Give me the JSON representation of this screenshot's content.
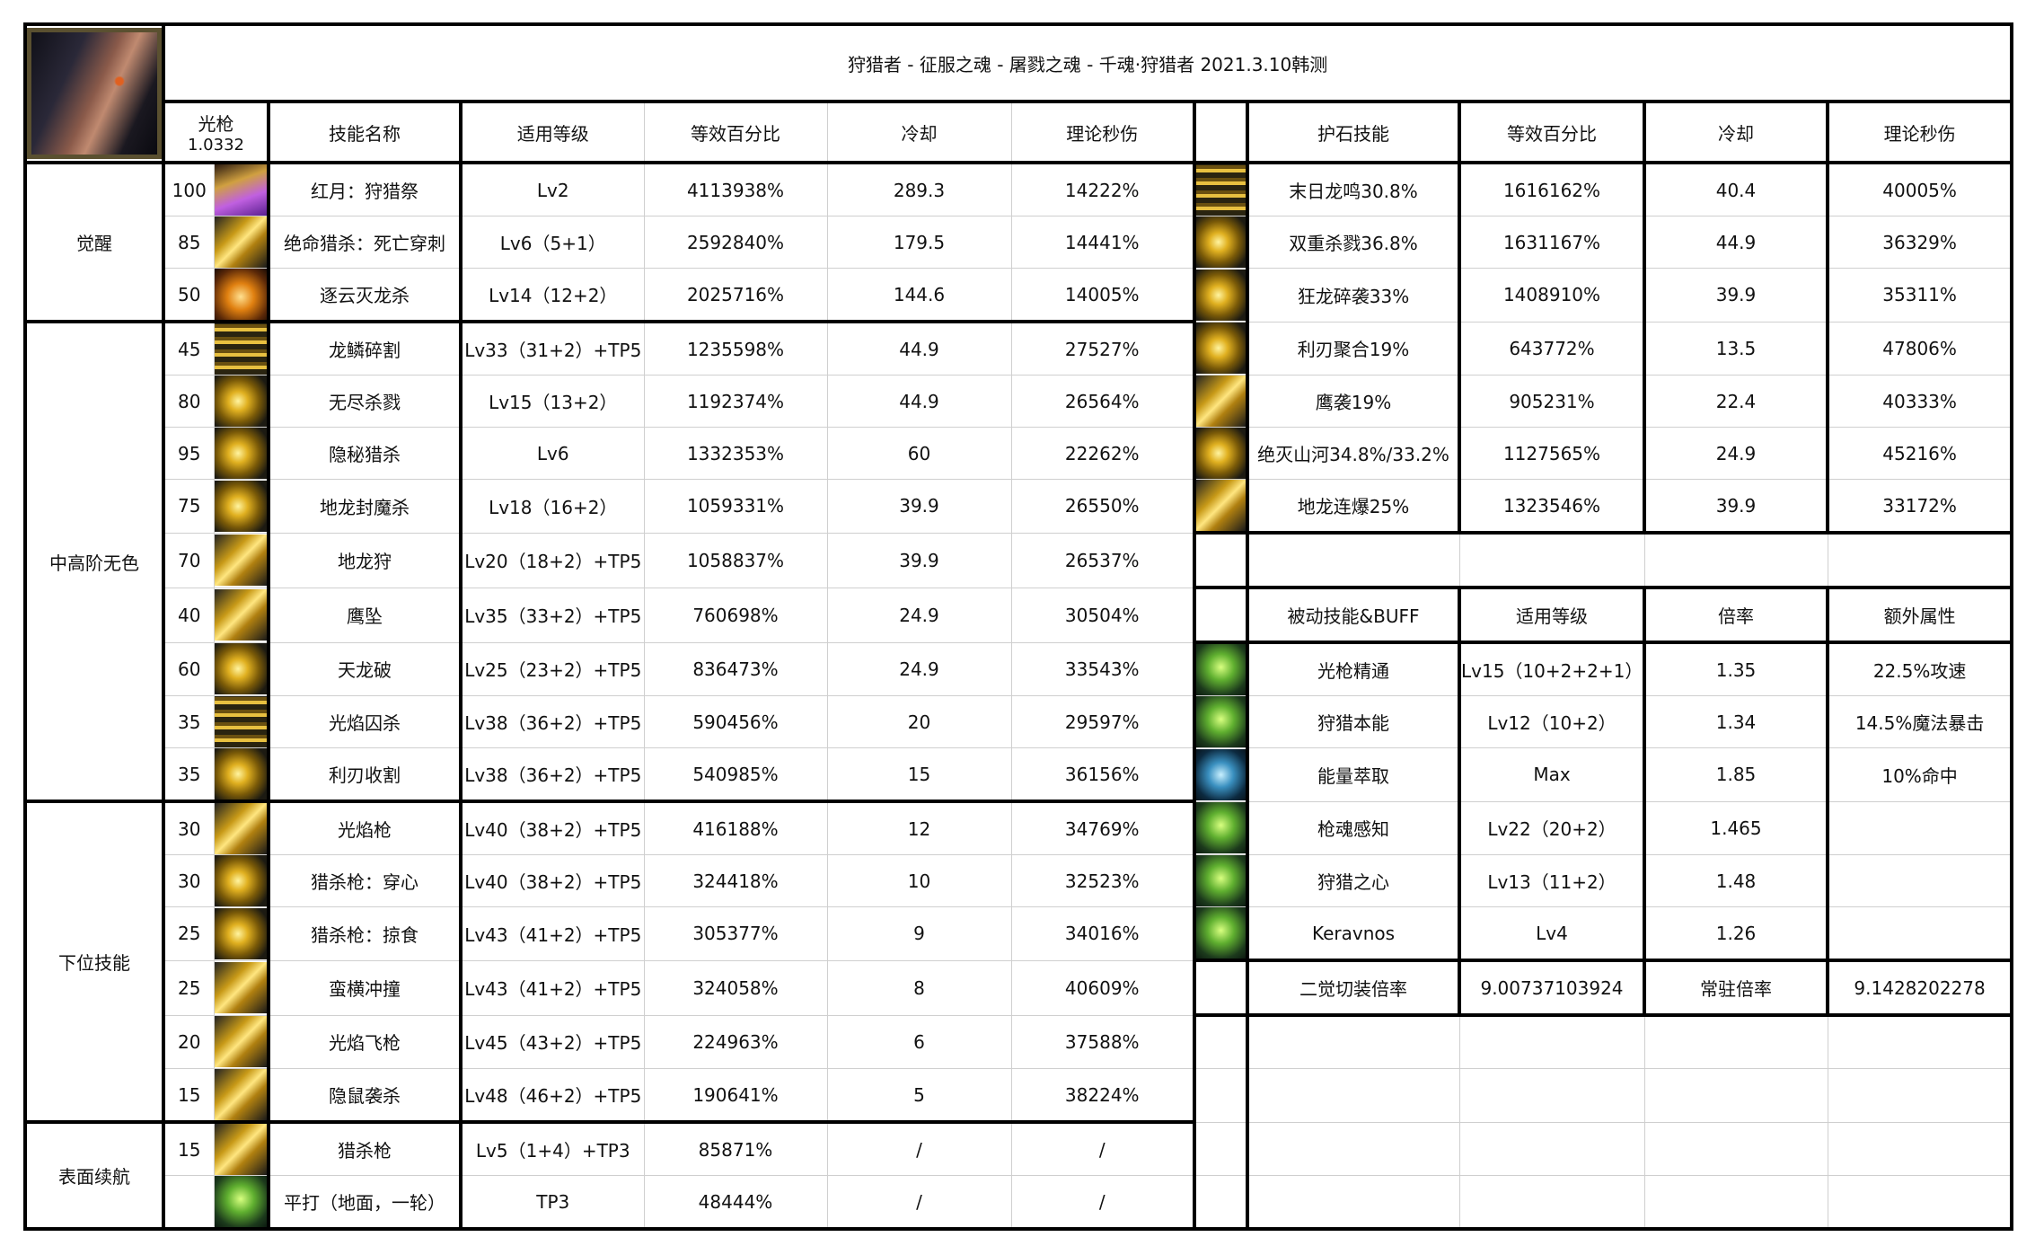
{
  "title": "狩猎者 - 征服之魂 - 屠戮之魂 - 千魂·狩猎者 2021.3.10韩测",
  "header_left": {
    "weapon": "光枪",
    "weapon_coef": "1.0332",
    "columns": [
      "技能名称",
      "适用等级",
      "等效百分比",
      "冷却",
      "理论秒伤"
    ]
  },
  "groups": [
    {
      "name": "觉醒",
      "rows": [
        {
          "lv": "100",
          "icon": "purple",
          "name": "红月：狩猎祭",
          "level": "Lv2",
          "pct": "4113938%",
          "cd": "289.3",
          "dps": "14222%"
        },
        {
          "lv": "85",
          "icon": "gold2",
          "name": "绝命猎杀：死亡穿刺",
          "level": "Lv6（5+1）",
          "pct": "2592840%",
          "cd": "179.5",
          "dps": "14441%"
        },
        {
          "lv": "50",
          "icon": "orange",
          "name": "逐云灭龙杀",
          "level": "Lv14（12+2）",
          "pct": "2025716%",
          "cd": "144.6",
          "dps": "14005%"
        }
      ]
    },
    {
      "name": "中高阶无色",
      "rows": [
        {
          "lv": "45",
          "icon": "gold3",
          "name": "龙鳞碎割",
          "level": "Lv33（31+2）+TP5",
          "pct": "1235598%",
          "cd": "44.9",
          "dps": "27527%"
        },
        {
          "lv": "80",
          "icon": "gold",
          "name": "无尽杀戮",
          "level": "Lv15（13+2）",
          "pct": "1192374%",
          "cd": "44.9",
          "dps": "26564%"
        },
        {
          "lv": "95",
          "icon": "gold",
          "name": "隐秘猎杀",
          "level": "Lv6",
          "pct": "1332353%",
          "cd": "60",
          "dps": "22262%"
        },
        {
          "lv": "75",
          "icon": "gold",
          "name": "地龙封魔杀",
          "level": "Lv18（16+2）",
          "pct": "1059331%",
          "cd": "39.9",
          "dps": "26550%"
        },
        {
          "lv": "70",
          "icon": "gold2",
          "name": "地龙狩",
          "level": "Lv20（18+2）+TP5",
          "pct": "1058837%",
          "cd": "39.9",
          "dps": "26537%"
        },
        {
          "lv": "40",
          "icon": "gold2",
          "name": "鹰坠",
          "level": "Lv35（33+2）+TP5",
          "pct": "760698%",
          "cd": "24.9",
          "dps": "30504%"
        },
        {
          "lv": "60",
          "icon": "gold",
          "name": "天龙破",
          "level": "Lv25（23+2）+TP5",
          "pct": "836473%",
          "cd": "24.9",
          "dps": "33543%"
        },
        {
          "lv": "35",
          "icon": "gold3",
          "name": "光焰囚杀",
          "level": "Lv38（36+2）+TP5",
          "pct": "590456%",
          "cd": "20",
          "dps": "29597%"
        },
        {
          "lv": "35",
          "icon": "gold",
          "name": "利刃收割",
          "level": "Lv38（36+2）+TP5",
          "pct": "540985%",
          "cd": "15",
          "dps": "36156%"
        }
      ]
    },
    {
      "name": "下位技能",
      "rows": [
        {
          "lv": "30",
          "icon": "gold2",
          "name": "光焰枪",
          "level": "Lv40（38+2）+TP5",
          "pct": "416188%",
          "cd": "12",
          "dps": "34769%"
        },
        {
          "lv": "30",
          "icon": "gold",
          "name": "猎杀枪：穿心",
          "level": "Lv40（38+2）+TP5",
          "pct": "324418%",
          "cd": "10",
          "dps": "32523%"
        },
        {
          "lv": "25",
          "icon": "gold",
          "name": "猎杀枪：掠食",
          "level": "Lv43（41+2）+TP5",
          "pct": "305377%",
          "cd": "9",
          "dps": "34016%"
        },
        {
          "lv": "25",
          "icon": "gold2",
          "name": "蛮横冲撞",
          "level": "Lv43（41+2）+TP5",
          "pct": "324058%",
          "cd": "8",
          "dps": "40609%"
        },
        {
          "lv": "20",
          "icon": "gold2",
          "name": "光焰飞枪",
          "level": "Lv45（43+2）+TP5",
          "pct": "224963%",
          "cd": "6",
          "dps": "37588%"
        },
        {
          "lv": "15",
          "icon": "gold2",
          "name": "隐鼠袭杀",
          "level": "Lv48（46+2）+TP5",
          "pct": "190641%",
          "cd": "5",
          "dps": "38224%"
        }
      ]
    },
    {
      "name": "表面续航",
      "rows": [
        {
          "lv": "15",
          "icon": "gold2",
          "name": "猎杀枪",
          "level": "Lv5（1+4）+TP3",
          "pct": "85871%",
          "cd": "/",
          "dps": "/"
        },
        {
          "lv": "",
          "icon": "green",
          "name": "平打（地面，一轮）",
          "level": "TP3",
          "pct": "48444%",
          "cd": "/",
          "dps": "/"
        }
      ]
    }
  ],
  "header_right": [
    "护石技能",
    "等效百分比",
    "冷却",
    "理论秒伤"
  ],
  "talismans": [
    {
      "icon": "gold3",
      "name": "末日龙鸣30.8%",
      "pct": "1616162%",
      "cd": "40.4",
      "dps": "40005%"
    },
    {
      "icon": "gold",
      "name": "双重杀戮36.8%",
      "pct": "1631167%",
      "cd": "44.9",
      "dps": "36329%"
    },
    {
      "icon": "gold",
      "name": "狂龙碎袭33%",
      "pct": "1408910%",
      "cd": "39.9",
      "dps": "35311%"
    },
    {
      "icon": "gold",
      "name": "利刃聚合19%",
      "pct": "643772%",
      "cd": "13.5",
      "dps": "47806%"
    },
    {
      "icon": "gold2",
      "name": "鹰袭19%",
      "pct": "905231%",
      "cd": "22.4",
      "dps": "40333%"
    },
    {
      "icon": "gold",
      "name": "绝灭山河34.8%/33.2%",
      "pct": "1127565%",
      "cd": "24.9",
      "dps": "45216%"
    },
    {
      "icon": "gold2",
      "name": "地龙连爆25%",
      "pct": "1323546%",
      "cd": "39.9",
      "dps": "33172%"
    }
  ],
  "passive_header": [
    "被动技能&BUFF",
    "适用等级",
    "倍率",
    "额外属性"
  ],
  "passives": [
    {
      "icon": "green",
      "name": "光枪精通",
      "level": "Lv15（10+2+2+1）",
      "rate": "1.35",
      "extra": "22.5%攻速"
    },
    {
      "icon": "green",
      "name": "狩猎本能",
      "level": "Lv12（10+2）",
      "rate": "1.34",
      "extra": "14.5%魔法暴击"
    },
    {
      "icon": "blue",
      "name": "能量萃取",
      "level": "Max",
      "rate": "1.85",
      "extra": "10%命中"
    },
    {
      "icon": "green",
      "name": "枪魂感知",
      "level": "Lv22（20+2）",
      "rate": "1.465",
      "extra": ""
    },
    {
      "icon": "green",
      "name": "狩猎之心",
      "level": "Lv13（11+2）",
      "rate": "1.48",
      "extra": ""
    },
    {
      "icon": "green",
      "name": "Keravnos",
      "level": "Lv4",
      "rate": "1.26",
      "extra": ""
    }
  ],
  "summary": {
    "label1": "二觉切装倍率",
    "value1": "9.00737103924",
    "label2": "常驻倍率",
    "value2": "9.1428202278"
  }
}
